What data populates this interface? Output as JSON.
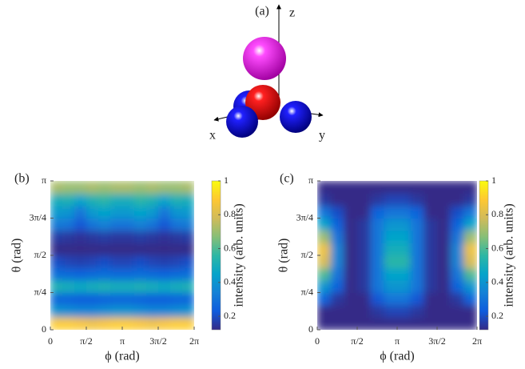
{
  "diagram": {
    "label": "(a)",
    "axis_labels": {
      "x": "x",
      "y": "y",
      "z": "z"
    }
  },
  "chart_data": [
    {
      "type": "heatmap",
      "panel_label": "(b)",
      "xlabel": "ϕ (rad)",
      "ylabel": "θ (rad)",
      "colorbar_label": "intensity (arb. units)",
      "xlim": [
        0,
        6.2832
      ],
      "ylim": [
        0,
        3.1416
      ],
      "xticks": [
        0,
        {
          "value": 1.5708,
          "label": "π/2"
        },
        {
          "value": 3.1416,
          "label": "π"
        },
        {
          "value": 4.7124,
          "label": "3π/2"
        },
        {
          "value": 6.2832,
          "label": "2π"
        }
      ],
      "yticks": [
        0,
        {
          "value": 0.7854,
          "label": "π/4"
        },
        {
          "value": 1.5708,
          "label": "π/2"
        },
        {
          "value": 2.3562,
          "label": "3π/4"
        },
        {
          "value": 3.1416,
          "label": "π"
        }
      ],
      "clim": [
        0.12,
        1
      ],
      "cticks": [
        0.2,
        0.4,
        0.6,
        0.8,
        1
      ],
      "colormap": [
        "#352a87",
        "#0f5cdd",
        "#1481d6",
        "#06a4ca",
        "#2eb7a4",
        "#87bf77",
        "#d1bb59",
        "#fec832",
        "#f9fb0e"
      ],
      "z": [
        [
          0.9,
          0.9,
          0.88,
          0.86,
          0.88,
          0.9,
          0.9,
          0.88,
          0.86,
          0.88,
          0.9,
          0.9
        ],
        [
          0.4,
          0.38,
          0.36,
          0.36,
          0.38,
          0.4,
          0.4,
          0.38,
          0.36,
          0.36,
          0.38,
          0.4
        ],
        [
          0.26,
          0.25,
          0.24,
          0.24,
          0.25,
          0.26,
          0.26,
          0.25,
          0.24,
          0.24,
          0.25,
          0.26
        ],
        [
          0.52,
          0.5,
          0.48,
          0.5,
          0.52,
          0.5,
          0.5,
          0.52,
          0.5,
          0.48,
          0.5,
          0.52
        ],
        [
          0.28,
          0.27,
          0.25,
          0.27,
          0.28,
          0.27,
          0.27,
          0.28,
          0.27,
          0.25,
          0.27,
          0.28
        ],
        [
          0.2,
          0.18,
          0.17,
          0.18,
          0.2,
          0.18,
          0.18,
          0.2,
          0.18,
          0.17,
          0.18,
          0.2
        ],
        [
          0.1,
          0.1,
          0.09,
          0.1,
          0.1,
          0.1,
          0.1,
          0.1,
          0.1,
          0.09,
          0.1,
          0.1
        ],
        [
          0.16,
          0.15,
          0.14,
          0.15,
          0.16,
          0.15,
          0.15,
          0.16,
          0.15,
          0.14,
          0.15,
          0.16
        ],
        [
          0.32,
          0.3,
          0.22,
          0.3,
          0.34,
          0.3,
          0.3,
          0.34,
          0.3,
          0.22,
          0.3,
          0.32
        ],
        [
          0.42,
          0.4,
          0.3,
          0.42,
          0.45,
          0.42,
          0.42,
          0.45,
          0.42,
          0.3,
          0.4,
          0.42
        ],
        [
          0.5,
          0.52,
          0.45,
          0.52,
          0.55,
          0.5,
          0.5,
          0.55,
          0.52,
          0.45,
          0.52,
          0.5
        ],
        [
          0.72,
          0.7,
          0.7,
          0.72,
          0.7,
          0.72,
          0.72,
          0.7,
          0.72,
          0.7,
          0.7,
          0.72
        ]
      ]
    },
    {
      "type": "heatmap",
      "panel_label": "(c)",
      "xlabel": "ϕ (rad)",
      "ylabel": "θ (rad)",
      "colorbar_label": "intensity (arb. units)",
      "xlim": [
        0,
        6.2832
      ],
      "ylim": [
        0,
        3.1416
      ],
      "xticks": [
        0,
        {
          "value": 1.5708,
          "label": "π/2"
        },
        {
          "value": 3.1416,
          "label": "π"
        },
        {
          "value": 4.7124,
          "label": "3π/2"
        },
        {
          "value": 6.2832,
          "label": "2π"
        }
      ],
      "yticks": [
        0,
        {
          "value": 0.7854,
          "label": "π/4"
        },
        {
          "value": 1.5708,
          "label": "π/2"
        },
        {
          "value": 2.3562,
          "label": "3π/4"
        },
        {
          "value": 3.1416,
          "label": "π"
        }
      ],
      "clim": [
        0.12,
        1
      ],
      "cticks": [
        0.2,
        0.4,
        0.6,
        0.8,
        1
      ],
      "colormap": [
        "#352a87",
        "#0f5cdd",
        "#1481d6",
        "#06a4ca",
        "#2eb7a4",
        "#87bf77",
        "#d1bb59",
        "#fec832",
        "#f9fb0e"
      ],
      "z": [
        [
          0.05,
          0.05,
          0.05,
          0.05,
          0.05,
          0.05,
          0.05,
          0.05,
          0.05,
          0.05,
          0.05,
          0.05
        ],
        [
          0.12,
          0.1,
          0.08,
          0.1,
          0.15,
          0.18,
          0.18,
          0.15,
          0.1,
          0.08,
          0.1,
          0.12
        ],
        [
          0.25,
          0.15,
          0.08,
          0.12,
          0.22,
          0.3,
          0.3,
          0.22,
          0.12,
          0.08,
          0.15,
          0.25
        ],
        [
          0.4,
          0.25,
          0.1,
          0.15,
          0.3,
          0.4,
          0.4,
          0.3,
          0.15,
          0.1,
          0.25,
          0.4
        ],
        [
          0.6,
          0.3,
          0.1,
          0.15,
          0.3,
          0.45,
          0.45,
          0.3,
          0.15,
          0.1,
          0.3,
          0.6
        ],
        [
          0.8,
          0.35,
          0.1,
          0.15,
          0.3,
          0.55,
          0.55,
          0.3,
          0.15,
          0.1,
          0.35,
          0.8
        ],
        [
          0.85,
          0.35,
          0.1,
          0.15,
          0.3,
          0.5,
          0.5,
          0.3,
          0.15,
          0.1,
          0.35,
          0.85
        ],
        [
          0.7,
          0.3,
          0.1,
          0.15,
          0.3,
          0.45,
          0.45,
          0.3,
          0.15,
          0.1,
          0.3,
          0.7
        ],
        [
          0.45,
          0.25,
          0.1,
          0.15,
          0.3,
          0.4,
          0.4,
          0.3,
          0.15,
          0.1,
          0.25,
          0.45
        ],
        [
          0.3,
          0.2,
          0.1,
          0.12,
          0.25,
          0.3,
          0.3,
          0.25,
          0.12,
          0.1,
          0.2,
          0.3
        ],
        [
          0.15,
          0.12,
          0.08,
          0.1,
          0.15,
          0.18,
          0.18,
          0.15,
          0.1,
          0.08,
          0.12,
          0.15
        ],
        [
          0.08,
          0.07,
          0.06,
          0.06,
          0.07,
          0.08,
          0.08,
          0.07,
          0.06,
          0.06,
          0.07,
          0.08
        ]
      ]
    }
  ]
}
